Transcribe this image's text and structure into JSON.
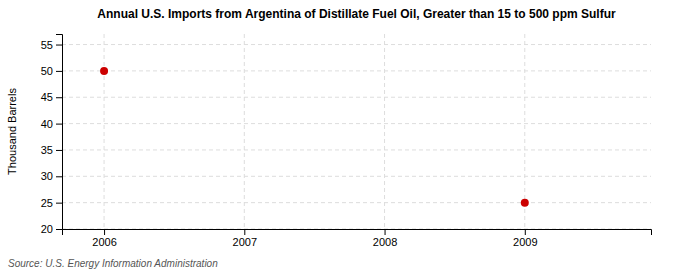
{
  "chart_data": {
    "type": "scatter",
    "title": "Annual U.S. Imports from Argentina of Distillate Fuel Oil, Greater than 15 to 500 ppm Sulfur",
    "ylabel": "Thousand Barrels",
    "annotations": [
      "Source: U.S. Energy Information Administration"
    ],
    "x": [
      2006,
      2009
    ],
    "values": [
      50,
      25
    ],
    "color": "#cc0000",
    "marker": "circle",
    "line_style": "none",
    "xlim": [
      2005.7,
      2009.9
    ],
    "ylim": [
      20,
      57
    ],
    "xticks": [
      2006,
      2007,
      2008,
      2009
    ],
    "yticks": [
      20,
      25,
      30,
      35,
      40,
      45,
      50,
      55
    ],
    "grid": true
  }
}
